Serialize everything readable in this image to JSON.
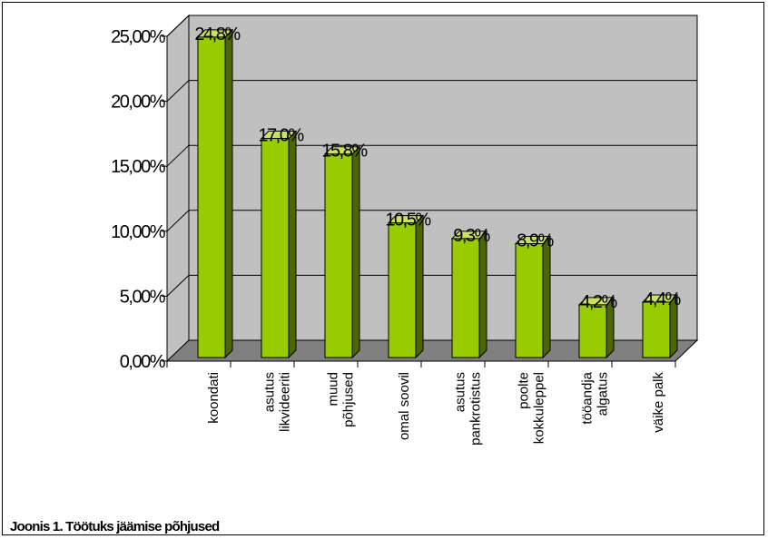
{
  "caption": "Joonis 1. Töötuks  jäämise põhjused",
  "chart_data": {
    "type": "bar",
    "categories": [
      [
        "koondati"
      ],
      [
        "asutus",
        "likvideeriti"
      ],
      [
        "muud",
        "põhjused"
      ],
      [
        "omal soovil"
      ],
      [
        "asutus",
        "pankrotistus"
      ],
      [
        "poolte",
        "kokkuleppel"
      ],
      [
        "tööandja",
        "algatus"
      ],
      [
        "väike palk"
      ]
    ],
    "values": [
      24.8,
      17.0,
      15.8,
      10.5,
      9.3,
      8.9,
      4.2,
      4.4
    ],
    "data_labels": [
      "24,8%",
      "17,0%",
      "15,8%",
      "10,5%",
      "9,3%",
      "8,9%",
      "4,2%",
      "4,4%"
    ],
    "y_ticks": [
      0,
      5,
      10,
      15,
      20,
      25
    ],
    "y_tick_labels": [
      "0,00%",
      "5,00%",
      "10,00%",
      "15,00%",
      "20,00%",
      "25,00%"
    ],
    "ylim": [
      0,
      25
    ],
    "grid": true,
    "legend": "none",
    "colors": {
      "bar_front": "#99cc00",
      "bar_side": "#4d6600",
      "bar_top": "#cce066",
      "wall": "#c0c0c0",
      "floor": "#808080"
    }
  }
}
